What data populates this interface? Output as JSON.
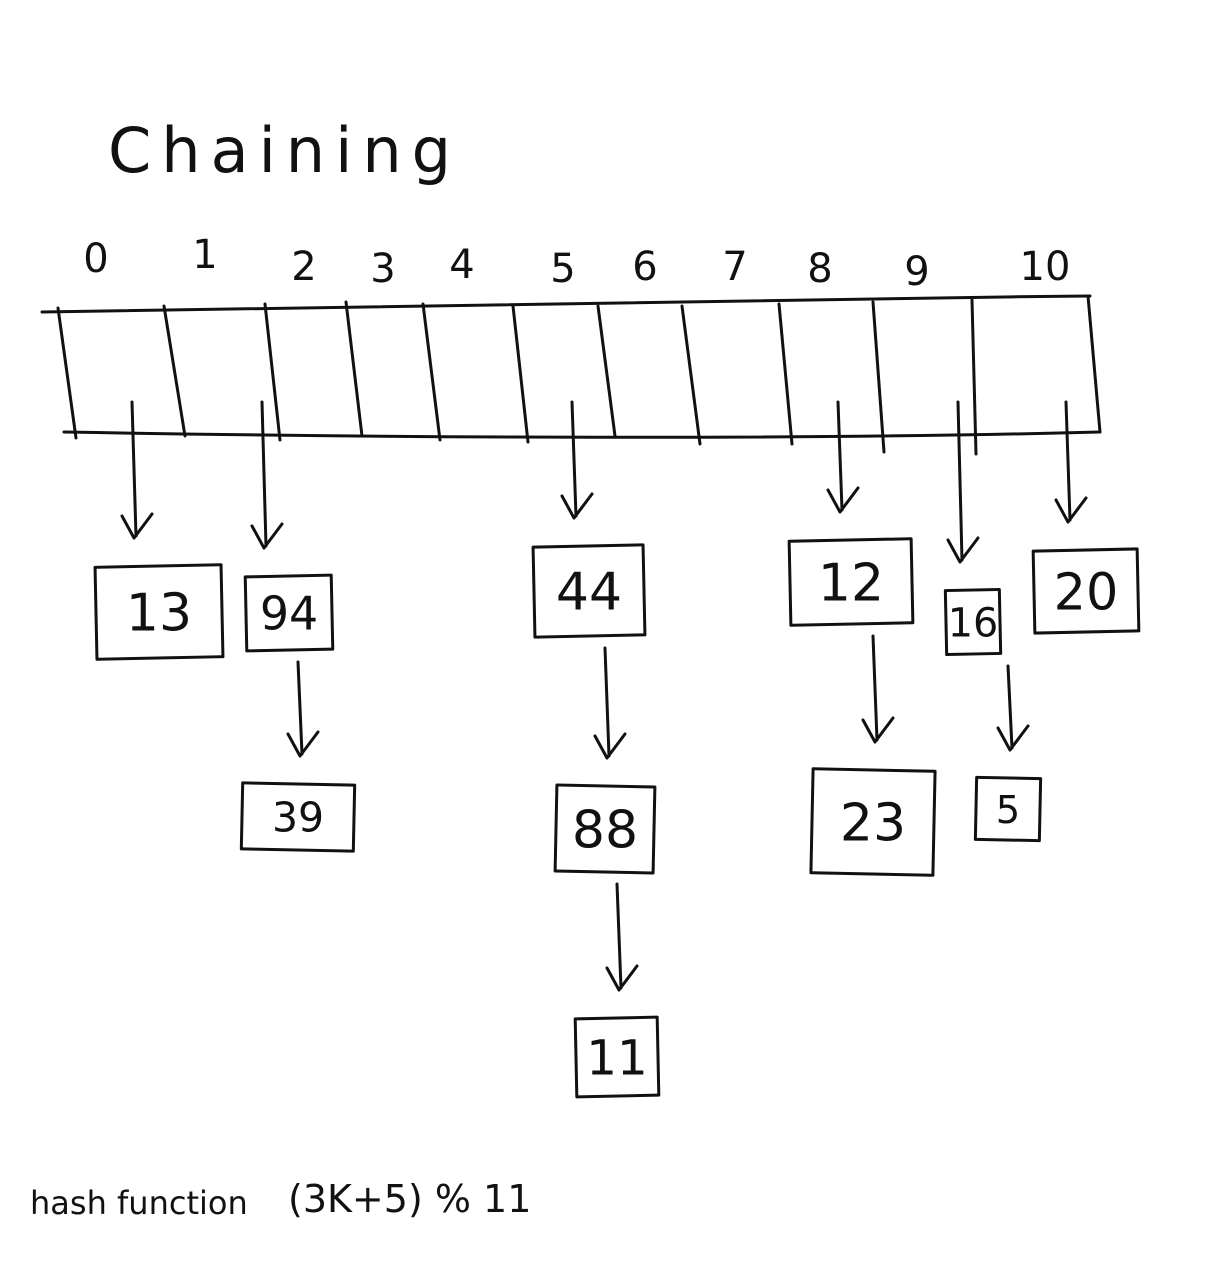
{
  "title": "Chaining",
  "table": {
    "indices": [
      "0",
      "1",
      "2",
      "3",
      "4",
      "5",
      "6",
      "7",
      "8",
      "9",
      "10"
    ]
  },
  "chains": [
    {
      "bucket": "0",
      "values": [
        "13"
      ]
    },
    {
      "bucket": "1",
      "values": [
        "94",
        "39"
      ]
    },
    {
      "bucket": "5",
      "values": [
        "44",
        "88",
        "11"
      ]
    },
    {
      "bucket": "8",
      "values": [
        "12",
        "23"
      ]
    },
    {
      "bucket": "9",
      "values": [
        "16",
        "5"
      ]
    },
    {
      "bucket": "10",
      "values": [
        "20"
      ]
    }
  ],
  "footer": {
    "hash_label": "hash function",
    "hash_formula": "(3K+5) % 11"
  }
}
